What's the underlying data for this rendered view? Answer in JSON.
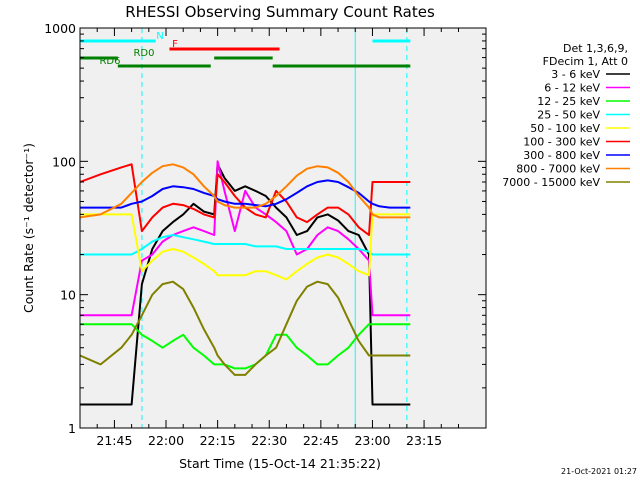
{
  "chart_data": {
    "type": "line",
    "title": "RHESSI Observing Summary Count Rates",
    "xlabel": "Start Time (15-Oct-14 21:35:22)",
    "ylabel": "Count Rate (s⁻¹ detector⁻¹)",
    "yscale": "log",
    "xlim": [
      0,
      118
    ],
    "ylim": [
      1,
      1000
    ],
    "x_ticks": [
      {
        "value": 10,
        "label": "21:45"
      },
      {
        "value": 25,
        "label": "22:00"
      },
      {
        "value": 40,
        "label": "22:15"
      },
      {
        "value": 55,
        "label": "22:30"
      },
      {
        "value": 70,
        "label": "22:45"
      },
      {
        "value": 85,
        "label": "23:00"
      },
      {
        "value": 100,
        "label": "23:15"
      }
    ],
    "y_ticks": [
      {
        "value": 1,
        "label": "1"
      },
      {
        "value": 10,
        "label": "10"
      },
      {
        "value": 100,
        "label": "100"
      },
      {
        "value": 1000,
        "label": "1000"
      }
    ],
    "info_lines": [
      "Det 1,3,6,9,",
      "FDecim 1, Att 0"
    ],
    "legend_title_color": "#000000",
    "x": [
      0,
      6,
      12,
      15,
      18,
      21,
      24,
      27,
      30,
      33,
      36,
      39,
      40,
      42,
      45,
      48,
      51,
      54,
      57,
      60,
      63,
      66,
      69,
      72,
      75,
      78,
      81,
      84,
      85,
      87,
      90,
      93,
      96
    ],
    "series": [
      {
        "name": "3 - 6 keV",
        "color": "#000000",
        "values": [
          1.5,
          1.5,
          1.5,
          1.5,
          12,
          22,
          30,
          35,
          40,
          48,
          42,
          40,
          95,
          75,
          60,
          65,
          60,
          55,
          45,
          38,
          28,
          30,
          38,
          40,
          36,
          30,
          28,
          20,
          1.5,
          1.5,
          1.5,
          1.5,
          1.5
        ]
      },
      {
        "name": "6 - 12 keV",
        "color": "#ff00ff",
        "values": [
          7,
          7,
          7,
          7,
          18,
          20,
          25,
          28,
          30,
          32,
          30,
          28,
          100,
          60,
          30,
          60,
          45,
          40,
          35,
          30,
          20,
          22,
          28,
          32,
          30,
          26,
          22,
          18,
          7,
          7,
          7,
          7,
          7
        ]
      },
      {
        "name": "12 - 25 keV",
        "color": "#00ff00",
        "values": [
          6,
          6,
          6,
          6,
          5,
          4.5,
          4,
          4.5,
          5,
          4,
          3.5,
          3,
          3,
          3,
          2.8,
          2.8,
          3,
          3.5,
          5,
          5,
          4,
          3.5,
          3,
          3,
          3.5,
          4,
          5,
          6,
          6,
          6,
          6,
          6,
          6
        ]
      },
      {
        "name": "25 - 50 keV",
        "color": "#00ffff",
        "values": [
          20,
          20,
          20,
          20,
          22,
          25,
          27,
          28,
          27,
          26,
          25,
          24,
          24,
          24,
          24,
          24,
          23,
          23,
          23,
          22,
          22,
          22,
          22,
          22,
          22,
          22,
          22,
          21,
          20,
          20,
          20,
          20,
          20
        ]
      },
      {
        "name": "50 - 100 keV",
        "color": "#ffff00",
        "values": [
          40,
          40,
          40,
          40,
          15,
          18,
          21,
          22,
          21,
          19,
          17,
          15,
          14,
          14,
          14,
          14,
          15,
          15,
          14,
          13,
          15,
          17,
          19,
          20,
          19,
          17,
          15,
          14,
          40,
          40,
          40,
          40,
          40
        ]
      },
      {
        "name": "100 - 300 keV",
        "color": "#ff0000",
        "values": [
          70,
          80,
          90,
          95,
          30,
          38,
          45,
          48,
          47,
          44,
          40,
          38,
          80,
          70,
          55,
          45,
          40,
          38,
          60,
          50,
          38,
          35,
          40,
          45,
          45,
          40,
          32,
          28,
          70,
          70,
          70,
          70,
          70
        ]
      },
      {
        "name": "300 - 800 keV",
        "color": "#0000ff",
        "values": [
          45,
          45,
          45,
          48,
          50,
          55,
          62,
          65,
          64,
          62,
          58,
          55,
          52,
          50,
          48,
          48,
          47,
          46,
          48,
          52,
          58,
          65,
          70,
          72,
          70,
          64,
          58,
          50,
          48,
          46,
          45,
          45,
          45
        ]
      },
      {
        "name": "800 - 7000 keV",
        "color": "#ff8000",
        "values": [
          38,
          40,
          48,
          58,
          70,
          82,
          92,
          95,
          90,
          80,
          65,
          55,
          50,
          47,
          45,
          45,
          45,
          48,
          55,
          65,
          78,
          88,
          92,
          90,
          82,
          70,
          55,
          45,
          40,
          38,
          38,
          38,
          38
        ]
      },
      {
        "name": "7000 - 15000 keV",
        "color": "#808000",
        "values": [
          3.5,
          3,
          4,
          5,
          7,
          10,
          12,
          12.5,
          11,
          8,
          5.5,
          4,
          3.5,
          3,
          2.5,
          2.5,
          3,
          3.5,
          4,
          6,
          9,
          11.5,
          12.5,
          12,
          9.5,
          6.5,
          4.5,
          3.5,
          3.5,
          3.5,
          3.5,
          3.5,
          3.5
        ]
      }
    ],
    "flag_bars": [
      {
        "label": "N",
        "color": "#00ffff",
        "segments": [
          [
            0,
            22
          ],
          [
            85,
            96
          ]
        ]
      },
      {
        "label": "F",
        "color": "#ff0000",
        "segments": [
          [
            26,
            58
          ]
        ]
      },
      {
        "label": "RD0",
        "color": "#008000",
        "segments": [
          [
            0,
            11
          ],
          [
            39,
            56
          ]
        ]
      },
      {
        "label": "RD6",
        "color": "#008000",
        "segments": [
          [
            11,
            38
          ],
          [
            56,
            84
          ],
          [
            84,
            96
          ]
        ]
      }
    ],
    "vlines": [
      {
        "x": 0,
        "color": "#00ffff",
        "style": "solid"
      },
      {
        "x": 18,
        "color": "#00ffff",
        "style": "dashed"
      },
      {
        "x": 80,
        "color": "#00ffff",
        "style": "solid"
      },
      {
        "x": 95,
        "color": "#00ffff",
        "style": "dashed"
      }
    ],
    "timestamp": "21-Oct-2021 01:27"
  }
}
